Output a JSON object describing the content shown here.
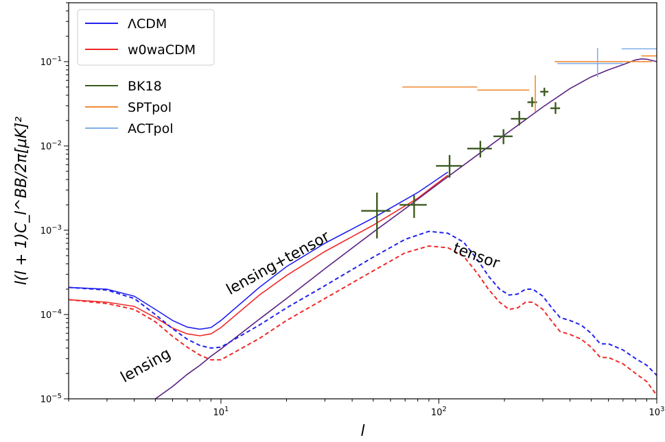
{
  "chart_data": {
    "type": "line",
    "title": "",
    "xlabel": "l",
    "ylabel": "l(l + 1)C_l^BB/2π[μK]²",
    "xscale": "log",
    "yscale": "log",
    "xlim": [
      2,
      1000
    ],
    "ylim": [
      1e-05,
      0.5
    ],
    "grid": false,
    "legend_position": "top-left",
    "x_tick_labels": [
      {
        "value": 10,
        "base": "10",
        "exp": "1"
      },
      {
        "value": 100,
        "base": "10",
        "exp": "2"
      },
      {
        "value": 1000,
        "base": "10",
        "exp": "3"
      }
    ],
    "y_tick_labels": [
      {
        "value": 1e-05,
        "base": "10",
        "exp": "−5"
      },
      {
        "value": 0.0001,
        "base": "10",
        "exp": "−4"
      },
      {
        "value": 0.001,
        "base": "10",
        "exp": "−3"
      },
      {
        "value": 0.01,
        "base": "10",
        "exp": "−2"
      },
      {
        "value": 0.1,
        "base": "10",
        "exp": "−1"
      }
    ],
    "legend_models": [
      {
        "label": "ΛCDM",
        "color": "#2020f0"
      },
      {
        "label": "w0waCDM",
        "color": "#f02828"
      }
    ],
    "legend_data": [
      {
        "label": "BK18",
        "color": "#3b5a20"
      },
      {
        "label": "SPTpol",
        "color": "#f08a30"
      },
      {
        "label": "ACTpol",
        "color": "#80aee8"
      }
    ],
    "annotations": [
      {
        "text": "lensing+tensor",
        "x": 11,
        "y": 0.00017,
        "angle": -29
      },
      {
        "text": "lensing",
        "x": 3.6,
        "y": 1.55e-05,
        "angle": -29
      },
      {
        "text": "tensor",
        "x": 115,
        "y": 0.00055,
        "angle": 20
      }
    ],
    "series": [
      {
        "name": "ΛCDM",
        "color": "#2020f0",
        "style": "solid",
        "x": [
          2,
          3,
          4,
          5,
          6,
          7,
          8,
          9,
          10,
          15,
          20,
          30,
          50,
          80,
          110
        ],
        "y": [
          0.00021,
          0.0002,
          0.000165,
          0.000115,
          8.5e-05,
          7.1e-05,
          6.7e-05,
          7e-05,
          8.5e-05,
          0.00021,
          0.00037,
          0.0007,
          0.0014,
          0.0028,
          0.0049
        ]
      },
      {
        "name": "w0waCDM",
        "color": "#f02828",
        "style": "solid",
        "x": [
          2,
          3,
          4,
          5,
          6,
          7,
          8,
          9,
          10,
          15,
          20,
          30,
          50,
          80,
          110
        ],
        "y": [
          0.00015,
          0.00014,
          0.000125,
          9.2e-05,
          6.9e-05,
          5.9e-05,
          5.6e-05,
          5.9e-05,
          7e-05,
          0.00017,
          0.00029,
          0.00056,
          0.00115,
          0.0024,
          0.0045
        ]
      },
      {
        "name": "lensing",
        "color": "#5a2080",
        "style": "solid",
        "x": [
          5,
          6,
          7,
          8,
          9,
          10,
          15,
          20,
          30,
          50,
          70,
          100,
          150,
          200,
          250,
          300,
          400,
          500,
          600,
          700,
          800,
          850,
          900,
          1000
        ],
        "y": [
          1e-05,
          1.4e-05,
          1.95e-05,
          2.5e-05,
          3.2e-05,
          3.9e-05,
          8.8e-05,
          0.000155,
          0.00035,
          0.00095,
          0.0018,
          0.0036,
          0.0078,
          0.0135,
          0.0205,
          0.029,
          0.048,
          0.066,
          0.08,
          0.092,
          0.105,
          0.108,
          0.107,
          0.1
        ]
      },
      {
        "name": "tensor (ΛCDM)",
        "color": "#2020f0",
        "style": "dashed",
        "x": [
          2,
          3,
          4,
          5,
          6,
          7,
          8,
          9,
          10,
          15,
          20,
          30,
          50,
          70,
          90,
          110,
          130,
          150,
          170,
          190,
          210,
          230,
          250,
          270,
          300,
          330,
          360,
          400,
          450,
          500,
          550,
          600,
          700,
          800,
          900,
          1000
        ],
        "y": [
          0.00021,
          0.000195,
          0.000155,
          0.0001,
          6.8e-05,
          5.1e-05,
          4.3e-05,
          4e-05,
          4.1e-05,
          7.5e-05,
          0.00012,
          0.00022,
          0.00048,
          0.00078,
          0.00097,
          0.00092,
          0.00072,
          0.00045,
          0.00028,
          0.0002,
          0.00017,
          0.000175,
          0.0002,
          0.0002,
          0.000165,
          0.00012,
          9.2e-05,
          8.5e-05,
          7.5e-05,
          6e-05,
          4.5e-05,
          4.5e-05,
          3.8e-05,
          3e-05,
          2.5e-05,
          1.9e-05
        ]
      },
      {
        "name": "tensor (w0waCDM)",
        "color": "#f02828",
        "style": "dashed",
        "x": [
          2,
          3,
          4,
          5,
          6,
          7,
          8,
          9,
          10,
          15,
          20,
          30,
          50,
          70,
          90,
          110,
          130,
          150,
          170,
          190,
          210,
          230,
          250,
          270,
          300,
          330,
          360,
          400,
          450,
          500,
          550,
          600,
          700,
          800,
          900,
          1000
        ],
        "y": [
          0.00015,
          0.000135,
          0.000115,
          8.2e-05,
          5.5e-05,
          4.1e-05,
          3.3e-05,
          2.9e-05,
          2.9e-05,
          5.2e-05,
          8.5e-05,
          0.000155,
          0.00033,
          0.00054,
          0.00065,
          0.00062,
          0.00049,
          0.00031,
          0.000195,
          0.00014,
          0.000115,
          0.00012,
          0.00014,
          0.00014,
          0.000115,
          8.3e-05,
          6.3e-05,
          5.8e-05,
          5.1e-05,
          4.1e-05,
          3.1e-05,
          3.1e-05,
          2.6e-05,
          2e-05,
          1.6e-05,
          1.1e-05
        ]
      }
    ],
    "error_bars": [
      {
        "set": "BK18",
        "color": "#3b5a20",
        "x": 52,
        "xlo": 44,
        "xhi": 60,
        "y": 0.0017,
        "ylo": 0.0008,
        "yhi": 0.0028
      },
      {
        "set": "BK18",
        "color": "#3b5a20",
        "x": 77,
        "xlo": 66,
        "xhi": 88,
        "y": 0.002,
        "ylo": 0.0014,
        "yhi": 0.0026
      },
      {
        "set": "BK18",
        "color": "#3b5a20",
        "x": 112,
        "xlo": 97,
        "xhi": 128,
        "y": 0.0058,
        "ylo": 0.0042,
        "yhi": 0.0078
      },
      {
        "set": "BK18",
        "color": "#3b5a20",
        "x": 155,
        "xlo": 135,
        "xhi": 175,
        "y": 0.0093,
        "ylo": 0.0073,
        "yhi": 0.0115
      },
      {
        "set": "BK18",
        "color": "#3b5a20",
        "x": 198,
        "xlo": 178,
        "xhi": 218,
        "y": 0.013,
        "ylo": 0.0105,
        "yhi": 0.0158
      },
      {
        "set": "BK18",
        "color": "#3b5a20",
        "x": 234,
        "xlo": 214,
        "xhi": 254,
        "y": 0.021,
        "ylo": 0.0175,
        "yhi": 0.026
      },
      {
        "set": "BK18",
        "color": "#3b5a20",
        "x": 268,
        "xlo": 255,
        "xhi": 282,
        "y": 0.033,
        "ylo": 0.029,
        "yhi": 0.038
      },
      {
        "set": "BK18",
        "color": "#3b5a20",
        "x": 305,
        "xlo": 292,
        "xhi": 318,
        "y": 0.044,
        "ylo": 0.039,
        "yhi": 0.049
      },
      {
        "set": "BK18",
        "color": "#3b5a20",
        "x": 343,
        "xlo": 325,
        "xhi": 360,
        "y": 0.028,
        "ylo": 0.024,
        "yhi": 0.033
      },
      {
        "set": "SPTpol",
        "color": "#f08a30",
        "x": 110,
        "xlo": 68,
        "xhi": 150,
        "y": 0.05,
        "ylo": 0.05,
        "yhi": 0.05
      },
      {
        "set": "SPTpol",
        "color": "#f08a30",
        "x": 200,
        "xlo": 150,
        "xhi": 260,
        "y": 0.046,
        "ylo": 0.046,
        "yhi": 0.046
      },
      {
        "set": "SPTpol",
        "color": "#f08a30",
        "x": 277,
        "xlo": 277,
        "xhi": 277,
        "y": 0.035,
        "ylo": 0.0255,
        "yhi": 0.069
      },
      {
        "set": "SPTpol",
        "color": "#f08a30",
        "x": 640,
        "xlo": 340,
        "xhi": 950,
        "y": 0.1,
        "ylo": 0.1,
        "yhi": 0.1
      },
      {
        "set": "SPTpol",
        "color": "#f08a30",
        "x": 900,
        "xlo": 850,
        "xhi": 1000,
        "y": 0.117,
        "ylo": 0.117,
        "yhi": 0.117
      },
      {
        "set": "ACTpol",
        "color": "#80aee8",
        "x": 535,
        "xlo": 350,
        "xhi": 700,
        "y": 0.095,
        "ylo": 0.065,
        "yhi": 0.145
      },
      {
        "set": "ACTpol",
        "color": "#80aee8",
        "x": 850,
        "xlo": 690,
        "xhi": 1000,
        "y": 0.142,
        "ylo": 0.142,
        "yhi": 0.142
      }
    ]
  }
}
